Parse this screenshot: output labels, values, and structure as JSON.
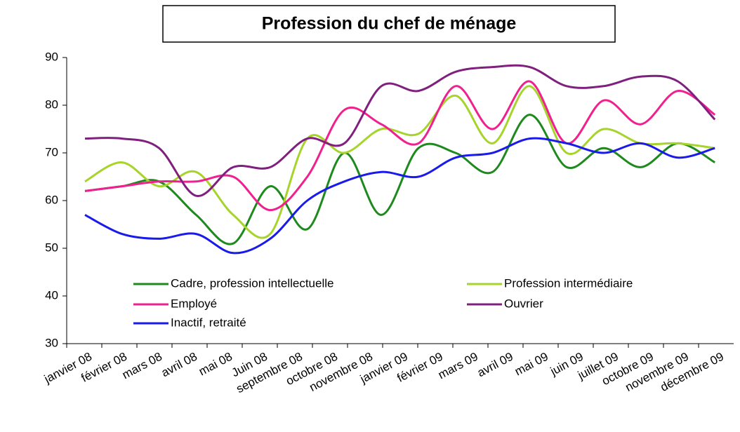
{
  "chart_data": {
    "type": "line",
    "title": "Profession du chef de ménage",
    "categories": [
      "janvier 08",
      "février 08",
      "mars 08",
      "avril 08",
      "mai 08",
      "Juin 08",
      "septembre 08",
      "octobre 08",
      "novembre 08",
      "janvier 09",
      "février 09",
      "mars 09",
      "avril 09",
      "mai 09",
      "juin 09",
      "juillet 09",
      "octobre 09",
      "novembre 09",
      "décembre 09"
    ],
    "series": [
      {
        "name": "Cadre, profession intellectuelle",
        "color": "#1e8a1e",
        "values": [
          62,
          63,
          64,
          57,
          51,
          63,
          54,
          70,
          57,
          71,
          70,
          66,
          78,
          67,
          71,
          67,
          72,
          68,
          null
        ]
      },
      {
        "name": "Profession intermédiaire",
        "color": "#a6d42a",
        "values": [
          64,
          68,
          63,
          66,
          57,
          53,
          73,
          70,
          75,
          74,
          82,
          72,
          84,
          70,
          75,
          72,
          72,
          71,
          null
        ]
      },
      {
        "name": "Employé",
        "color": "#f0208e",
        "values": [
          62,
          63,
          64,
          64,
          65,
          58,
          65,
          79,
          76,
          72,
          84,
          75,
          85,
          72,
          81,
          76,
          83,
          78,
          null
        ]
      },
      {
        "name": "Ouvrier",
        "color": "#80207e",
        "values": [
          73,
          73,
          71,
          61,
          67,
          67,
          73,
          72,
          84,
          83,
          87,
          88,
          88,
          84,
          84,
          86,
          85,
          77,
          null
        ]
      },
      {
        "name": "Inactif, retraité",
        "color": "#1a1aeb",
        "values": [
          57,
          53,
          52,
          53,
          49,
          52,
          60,
          64,
          66,
          65,
          69,
          70,
          73,
          72,
          70,
          72,
          69,
          71,
          null
        ]
      }
    ],
    "ylim": [
      30,
      90
    ],
    "yticks": [
      30,
      40,
      50,
      60,
      70,
      80,
      90
    ]
  }
}
